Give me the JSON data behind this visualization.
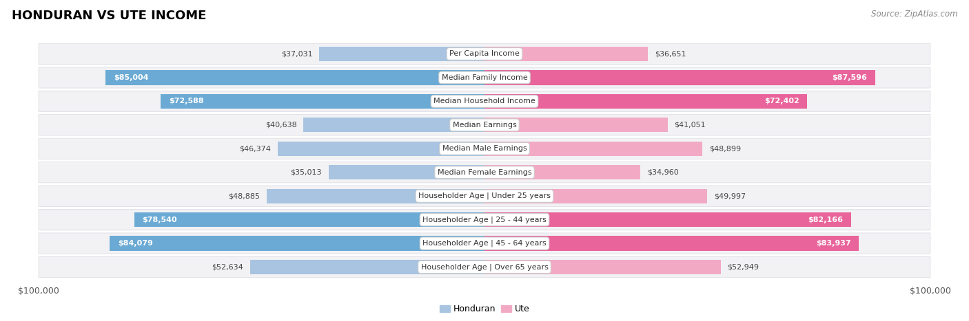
{
  "title": "HONDURAN VS UTE INCOME",
  "source": "Source: ZipAtlas.com",
  "categories": [
    "Per Capita Income",
    "Median Family Income",
    "Median Household Income",
    "Median Earnings",
    "Median Male Earnings",
    "Median Female Earnings",
    "Householder Age | Under 25 years",
    "Householder Age | 25 - 44 years",
    "Householder Age | 45 - 64 years",
    "Householder Age | Over 65 years"
  ],
  "honduran_values": [
    37031,
    85004,
    72588,
    40638,
    46374,
    35013,
    48885,
    78540,
    84079,
    52634
  ],
  "ute_values": [
    36651,
    87596,
    72402,
    41051,
    48899,
    34960,
    49997,
    82166,
    83937,
    52949
  ],
  "honduran_labels": [
    "$37,031",
    "$85,004",
    "$72,588",
    "$40,638",
    "$46,374",
    "$35,013",
    "$48,885",
    "$78,540",
    "$84,079",
    "$52,634"
  ],
  "ute_labels": [
    "$36,651",
    "$87,596",
    "$72,402",
    "$41,051",
    "$48,899",
    "$34,960",
    "$49,997",
    "$82,166",
    "$83,937",
    "$52,949"
  ],
  "max_value": 100000,
  "honduran_color_light": "#a8c4e0",
  "honduran_color_dark": "#6aaad4",
  "ute_color_light": "#f2aac4",
  "ute_color_dark": "#e8649a",
  "row_bg_color": "#f2f2f5",
  "row_border_color": "#d8d8e0",
  "label_threshold": 65000,
  "title_fontsize": 13,
  "axis_fontsize": 9,
  "bar_label_fontsize": 8,
  "cat_label_fontsize": 8,
  "legend_fontsize": 9,
  "source_fontsize": 8.5
}
